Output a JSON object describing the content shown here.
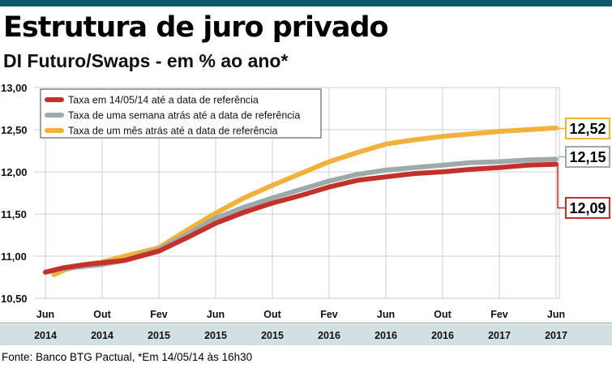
{
  "title": "Estrutura de juro privado",
  "subtitle": "DI Futuro/Swaps - em % ao ano*",
  "source": "Fonte: Banco BTG Pactual, *Em 14/05/14 às 16h30",
  "colors": {
    "accent": "#0e5a6a",
    "series_today": "#c4312b",
    "series_week": "#9daaab",
    "series_month": "#f0b23c",
    "band": "#d3e0e3",
    "grid": "#cfcfcf"
  },
  "chart_data": {
    "type": "line",
    "ylim": [
      10.5,
      13.0
    ],
    "yticks": [
      "13,00",
      "12,50",
      "12,00",
      "11,50",
      "11,00",
      "10,50"
    ],
    "ytick_values": [
      13.0,
      12.5,
      12.0,
      11.5,
      11.0,
      10.5
    ],
    "categories": [
      {
        "month": "Jun",
        "year": "2014"
      },
      {
        "month": "Out",
        "year": "2014"
      },
      {
        "month": "Fev",
        "year": "2015"
      },
      {
        "month": "Jun",
        "year": "2015"
      },
      {
        "month": "Out",
        "year": "2015"
      },
      {
        "month": "Fev",
        "year": "2016"
      },
      {
        "month": "Jun",
        "year": "2016"
      },
      {
        "month": "Out",
        "year": "2016"
      },
      {
        "month": "Fev",
        "year": "2017"
      },
      {
        "month": "Jun",
        "year": "2017"
      }
    ],
    "grid": true,
    "legend_position": "top-left",
    "series": [
      {
        "name": "Taxa em 14/05/14 até a data de referência",
        "color": "#c4312b",
        "end_label": "12,09",
        "x": [
          0,
          0.3,
          0.7,
          1.0,
          1.4,
          2.0,
          2.5,
          3.0,
          3.5,
          4.0,
          4.5,
          5.0,
          5.5,
          6.0,
          6.5,
          7.0,
          7.5,
          8.0,
          8.5,
          9.0
        ],
        "values": [
          10.81,
          10.86,
          10.9,
          10.92,
          10.95,
          11.06,
          11.22,
          11.39,
          11.52,
          11.63,
          11.72,
          11.82,
          11.9,
          11.94,
          11.98,
          12.0,
          12.03,
          12.05,
          12.08,
          12.09
        ]
      },
      {
        "name": "Taxa de uma semana atrás até a data de referência",
        "color": "#9daaab",
        "end_label": "12,15",
        "x": [
          0,
          0.3,
          0.7,
          1.0,
          1.4,
          2.0,
          2.5,
          3.0,
          3.5,
          4.0,
          4.5,
          5.0,
          5.5,
          6.0,
          6.5,
          7.0,
          7.5,
          8.0,
          8.5,
          9.0
        ],
        "values": [
          10.81,
          10.85,
          10.88,
          10.9,
          10.95,
          11.08,
          11.26,
          11.45,
          11.58,
          11.69,
          11.79,
          11.89,
          11.97,
          12.02,
          12.05,
          12.08,
          12.11,
          12.12,
          12.14,
          12.15
        ]
      },
      {
        "name": "Taxa de um mês atrás até a data de referência",
        "color": "#f0b23c",
        "end_label": "12,52",
        "x": [
          0.15,
          0.35,
          0.7,
          1.0,
          1.4,
          2.0,
          2.5,
          3.0,
          3.5,
          4.0,
          4.5,
          5.0,
          5.5,
          6.0,
          6.5,
          7.0,
          7.5,
          8.0,
          8.5,
          9.0
        ],
        "values": [
          10.78,
          10.84,
          10.9,
          10.93,
          11.0,
          11.1,
          11.31,
          11.51,
          11.69,
          11.84,
          11.98,
          12.12,
          12.23,
          12.33,
          12.38,
          12.42,
          12.45,
          12.48,
          12.5,
          12.52
        ]
      }
    ]
  }
}
